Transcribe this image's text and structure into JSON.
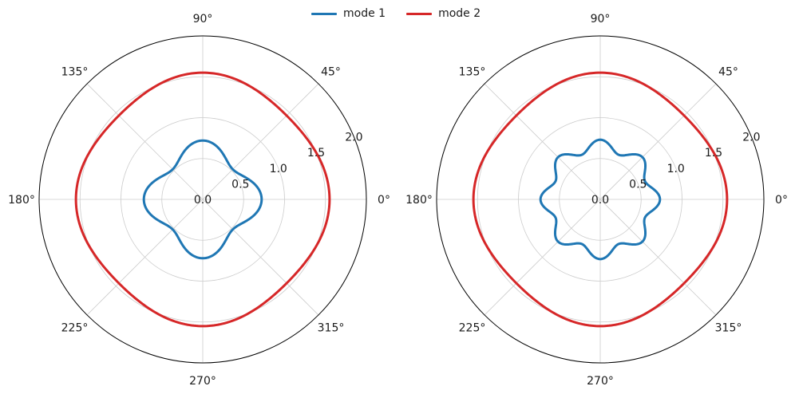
{
  "legend": {
    "items": [
      {
        "label": "mode 1",
        "color": "#1f77b4"
      },
      {
        "label": "mode 2",
        "color": "#d62728"
      }
    ],
    "position": "top-center"
  },
  "chart_data": [
    {
      "type": "polar-line",
      "rlim": [
        0,
        2.0
      ],
      "r_ticks": [
        "0.0",
        "0.5",
        "1.0",
        "1.5",
        "2.0"
      ],
      "theta_ticks": [
        "0°",
        "45°",
        "90°",
        "135°",
        "180°",
        "225°",
        "270°",
        "315°"
      ],
      "grid": true,
      "series": [
        {
          "name": "mode 1",
          "color": "#1f77b4",
          "base": 0.62,
          "amplitude": 0.1,
          "harmonic": 4,
          "phase_deg": 0
        },
        {
          "name": "mode 2",
          "color": "#d62728",
          "base": 1.5,
          "amplitude": 0.05,
          "harmonic": 4,
          "phase_deg": 0
        }
      ]
    },
    {
      "type": "polar-line",
      "rlim": [
        0,
        2.0
      ],
      "r_ticks": [
        "0.0",
        "0.5",
        "1.0",
        "1.5",
        "2.0"
      ],
      "theta_ticks": [
        "0°",
        "45°",
        "90°",
        "135°",
        "180°",
        "225°",
        "270°",
        "315°"
      ],
      "grid": true,
      "series": [
        {
          "name": "mode 1",
          "color": "#1f77b4",
          "base": 0.66,
          "amplitude": 0.07,
          "harmonic": 8,
          "phase_deg": 0
        },
        {
          "name": "mode 2",
          "color": "#d62728",
          "base": 1.5,
          "amplitude": 0.05,
          "harmonic": 4,
          "phase_deg": 0
        }
      ]
    }
  ]
}
